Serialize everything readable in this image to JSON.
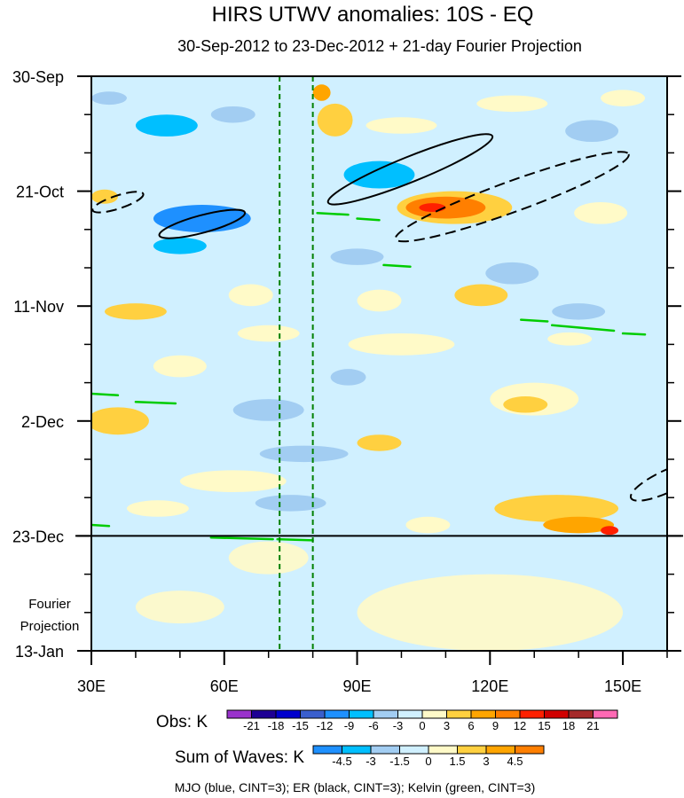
{
  "chart_data": {
    "type": "heatmap",
    "title": "HIRS UTWV anomalies: 10S - EQ",
    "subtitle": "30-Sep-2012 to 23-Dec-2012 + 21-day Fourier Projection",
    "x_ticks": [
      {
        "value": 30,
        "label": "30E"
      },
      {
        "value": 60,
        "label": "60E"
      },
      {
        "value": 90,
        "label": "90E"
      },
      {
        "value": 120,
        "label": "120E"
      },
      {
        "value": 150,
        "label": "150E"
      }
    ],
    "xlim": [
      30,
      160
    ],
    "y_ticks": [
      {
        "value": 0,
        "label": "30-Sep"
      },
      {
        "value": 21,
        "label": "21-Oct"
      },
      {
        "value": 42,
        "label": "11-Nov"
      },
      {
        "value": 63,
        "label": "2-Dec"
      },
      {
        "value": 84,
        "label": "23-Dec"
      },
      {
        "value": 105,
        "label": "13-Jan"
      }
    ],
    "ylim": [
      0,
      105
    ],
    "projection_start_day": 84,
    "projection_label": [
      "Fourier",
      "Projection"
    ],
    "reference_lines": [
      72.5,
      80
    ],
    "anomaly_patches": [
      {
        "lon": 34,
        "day": 4,
        "rx": 4,
        "ry": 1.2,
        "v": -3
      },
      {
        "lon": 47,
        "day": 9,
        "rx": 7,
        "ry": 2.0,
        "v": -6
      },
      {
        "lon": 62,
        "day": 7,
        "rx": 5,
        "ry": 1.5,
        "v": -3
      },
      {
        "lon": 85,
        "day": 8,
        "rx": 4,
        "ry": 3.0,
        "v": 6
      },
      {
        "lon": 82,
        "day": 3,
        "rx": 2,
        "ry": 1.5,
        "v": 9
      },
      {
        "lon": 100,
        "day": 9,
        "rx": 8,
        "ry": 1.5,
        "v": 3
      },
      {
        "lon": 125,
        "day": 5,
        "rx": 8,
        "ry": 1.5,
        "v": 3
      },
      {
        "lon": 143,
        "day": 10,
        "rx": 6,
        "ry": 2.0,
        "v": -3
      },
      {
        "lon": 150,
        "day": 4,
        "rx": 5,
        "ry": 1.5,
        "v": 3
      },
      {
        "lon": 33,
        "day": 22,
        "rx": 3,
        "ry": 1.3,
        "v": 6
      },
      {
        "lon": 55,
        "day": 26,
        "rx": 11,
        "ry": 2.5,
        "v": -9
      },
      {
        "lon": 50,
        "day": 31,
        "rx": 6,
        "ry": 1.5,
        "v": -6
      },
      {
        "lon": 95,
        "day": 18,
        "rx": 8,
        "ry": 2.5,
        "v": -6
      },
      {
        "lon": 112,
        "day": 24,
        "rx": 13,
        "ry": 3.0,
        "v": 6
      },
      {
        "lon": 110,
        "day": 24,
        "rx": 9,
        "ry": 2.0,
        "v": 12
      },
      {
        "lon": 107,
        "day": 24,
        "rx": 3,
        "ry": 0.8,
        "v": 15
      },
      {
        "lon": 145,
        "day": 25,
        "rx": 6,
        "ry": 2.0,
        "v": 3
      },
      {
        "lon": 90,
        "day": 33,
        "rx": 6,
        "ry": 1.5,
        "v": -3
      },
      {
        "lon": 125,
        "day": 36,
        "rx": 6,
        "ry": 2.0,
        "v": -3
      },
      {
        "lon": 40,
        "day": 43,
        "rx": 7,
        "ry": 1.5,
        "v": 6
      },
      {
        "lon": 66,
        "day": 40,
        "rx": 5,
        "ry": 2.0,
        "v": 3
      },
      {
        "lon": 95,
        "day": 41,
        "rx": 5,
        "ry": 2.0,
        "v": 3
      },
      {
        "lon": 118,
        "day": 40,
        "rx": 6,
        "ry": 2.0,
        "v": 6
      },
      {
        "lon": 140,
        "day": 43,
        "rx": 6,
        "ry": 1.5,
        "v": -3
      },
      {
        "lon": 70,
        "day": 47,
        "rx": 7,
        "ry": 1.5,
        "v": 3
      },
      {
        "lon": 100,
        "day": 49,
        "rx": 12,
        "ry": 2.0,
        "v": 3
      },
      {
        "lon": 138,
        "day": 48,
        "rx": 5,
        "ry": 1.2,
        "v": 3
      },
      {
        "lon": 50,
        "day": 53,
        "rx": 6,
        "ry": 2.0,
        "v": 3
      },
      {
        "lon": 88,
        "day": 55,
        "rx": 4,
        "ry": 1.5,
        "v": -3
      },
      {
        "lon": 130,
        "day": 59,
        "rx": 10,
        "ry": 3.0,
        "v": 3
      },
      {
        "lon": 128,
        "day": 60,
        "rx": 5,
        "ry": 1.5,
        "v": 6
      },
      {
        "lon": 36,
        "day": 63,
        "rx": 7,
        "ry": 2.5,
        "v": 6
      },
      {
        "lon": 70,
        "day": 61,
        "rx": 8,
        "ry": 2.0,
        "v": -3
      },
      {
        "lon": 95,
        "day": 67,
        "rx": 5,
        "ry": 1.5,
        "v": 6
      },
      {
        "lon": 78,
        "day": 69,
        "rx": 10,
        "ry": 1.5,
        "v": -3
      },
      {
        "lon": 62,
        "day": 74,
        "rx": 12,
        "ry": 2.0,
        "v": 3
      },
      {
        "lon": 75,
        "day": 78,
        "rx": 8,
        "ry": 1.5,
        "v": -3
      },
      {
        "lon": 45,
        "day": 79,
        "rx": 7,
        "ry": 1.5,
        "v": 3
      },
      {
        "lon": 135,
        "day": 79,
        "rx": 14,
        "ry": 2.5,
        "v": 6
      },
      {
        "lon": 140,
        "day": 82,
        "rx": 8,
        "ry": 1.5,
        "v": 9
      },
      {
        "lon": 147,
        "day": 83,
        "rx": 2,
        "ry": 0.8,
        "v": 15
      },
      {
        "lon": 106,
        "day": 82,
        "rx": 5,
        "ry": 1.5,
        "v": 3
      }
    ],
    "projection_patches": [
      {
        "lon": 70,
        "day": 88,
        "rx": 9,
        "ry": 3,
        "v": 1.5
      },
      {
        "lon": 120,
        "day": 98,
        "rx": 30,
        "ry": 7,
        "v": 1.5
      },
      {
        "lon": 50,
        "day": 97,
        "rx": 10,
        "ry": 3,
        "v": 1.5
      }
    ],
    "mjo_contours": [],
    "er_contours": [
      {
        "lon": 102,
        "day": 17,
        "rx": 20,
        "ry": 2.3,
        "angle": -22,
        "sign": "positive"
      },
      {
        "lon": 55,
        "day": 27,
        "rx": 10,
        "ry": 1.6,
        "angle": -15,
        "sign": "positive"
      },
      {
        "lon": 125,
        "day": 22,
        "rx": 28,
        "ry": 2.8,
        "angle": -20,
        "sign": "negative"
      },
      {
        "lon": 36,
        "day": 23,
        "rx": 6,
        "ry": 1.2,
        "angle": -18,
        "sign": "negative"
      },
      {
        "lon": 160,
        "day": 74,
        "rx": 9,
        "ry": 2.0,
        "angle": -25,
        "sign": "negative"
      }
    ],
    "kelvin_contours": [
      {
        "lon1": 81,
        "day1": 25,
        "lon2": 88,
        "day2": 25.3
      },
      {
        "lon1": 90,
        "day1": 26,
        "lon2": 95,
        "day2": 26.3
      },
      {
        "lon1": 96,
        "day1": 34.5,
        "lon2": 102,
        "day2": 34.8
      },
      {
        "lon1": 127,
        "day1": 44.5,
        "lon2": 133,
        "day2": 44.8
      },
      {
        "lon1": 134,
        "day1": 45.5,
        "lon2": 148,
        "day2": 46.5
      },
      {
        "lon1": 150,
        "day1": 47,
        "lon2": 155,
        "day2": 47.2
      },
      {
        "lon1": 30,
        "day1": 58,
        "lon2": 36,
        "day2": 58.3
      },
      {
        "lon1": 40,
        "day1": 59.5,
        "lon2": 49,
        "day2": 59.8
      },
      {
        "lon1": 30,
        "day1": 82,
        "lon2": 34,
        "day2": 82.2
      },
      {
        "lon1": 57,
        "day1": 84.3,
        "lon2": 71,
        "day2": 84.6
      },
      {
        "lon1": 72,
        "day1": 84.6,
        "lon2": 80,
        "day2": 84.8
      }
    ],
    "legend_obs": {
      "label": "Obs: K",
      "levels": [
        "-21",
        "-18",
        "-15",
        "-12",
        "-9",
        "-6",
        "-3",
        "0",
        "3",
        "6",
        "9",
        "12",
        "15",
        "18",
        "21"
      ],
      "colors": [
        "#9932cc",
        "#1e0094",
        "#0000cd",
        "#3a5fcd",
        "#1e90ff",
        "#00bfff",
        "#a2cdf2",
        "#d0f0ff",
        "#fffac8",
        "#ffd040",
        "#ffa500",
        "#ff7f00",
        "#ff2000",
        "#d00000",
        "#a52a2a",
        "#ff69b4"
      ]
    },
    "legend_waves": {
      "label": "Sum of Waves: K",
      "levels": [
        "-4.5",
        "-3",
        "-1.5",
        "0",
        "1.5",
        "3",
        "4.5"
      ],
      "colors": [
        "#1e90ff",
        "#00bfff",
        "#a2cdf2",
        "#d0f0ff",
        "#fffac8",
        "#ffd040",
        "#ffa500",
        "#ff7f00"
      ]
    },
    "footnote": "MJO (blue, CINT=3); ER (black, CINT=3); Kelvin (green, CINT=3)",
    "colors": {
      "obs_background": "#d0f0ff",
      "projection_background": "#d0f0ff",
      "er_contour": "#000000",
      "kelvin_contour": "#00cc00",
      "reference_line": "#008000"
    }
  }
}
